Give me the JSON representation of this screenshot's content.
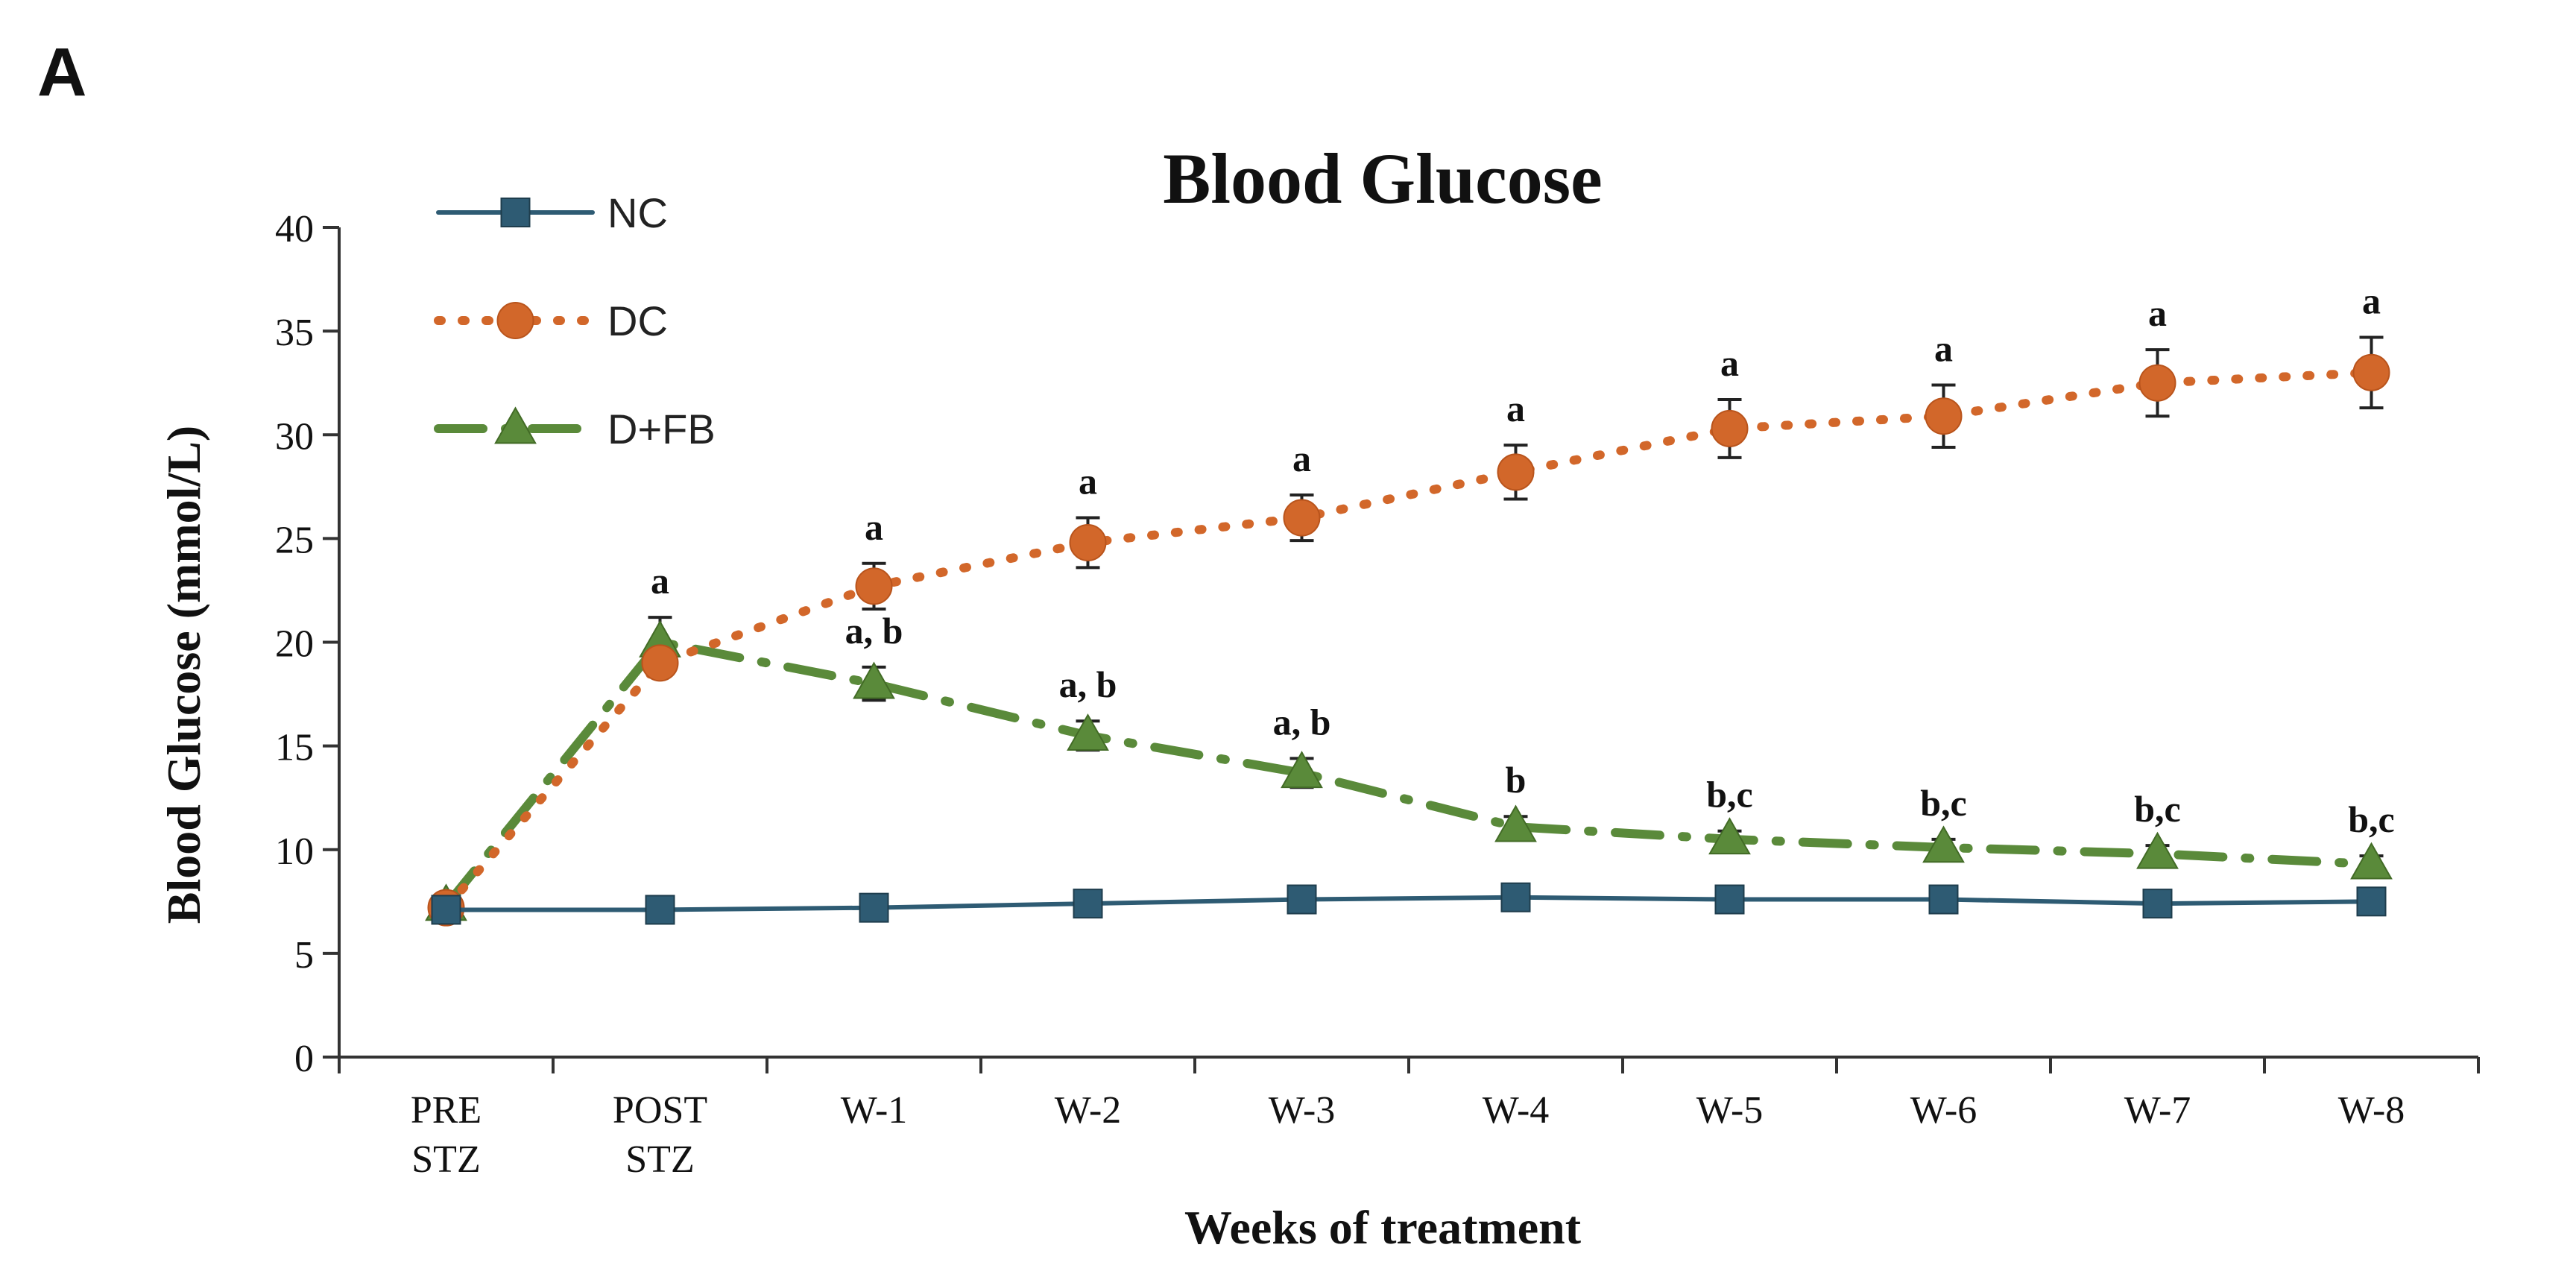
{
  "panel_label": "A",
  "chart_data": {
    "type": "line",
    "title": "Blood Glucose",
    "xlabel": "Weeks of treatment",
    "ylabel": "Blood Glucose (mmol/L)",
    "ylim": [
      0,
      40
    ],
    "yticks": [
      0,
      5,
      10,
      15,
      20,
      25,
      30,
      35,
      40
    ],
    "grid": false,
    "legend_position": "top-left",
    "categories": [
      [
        "PRE",
        "STZ"
      ],
      [
        "POST",
        "STZ"
      ],
      [
        "W-1"
      ],
      [
        "W-2"
      ],
      [
        "W-3"
      ],
      [
        "W-4"
      ],
      [
        "W-5"
      ],
      [
        "W-6"
      ],
      [
        "W-7"
      ],
      [
        "W-8"
      ]
    ],
    "series": [
      {
        "name": "NC",
        "color": "#2e5b73",
        "marker": "square",
        "line_style": "solid",
        "values": [
          7.1,
          7.1,
          7.2,
          7.4,
          7.6,
          7.7,
          7.6,
          7.6,
          7.4,
          7.5
        ],
        "errors": [
          0,
          0,
          0,
          0,
          0,
          0,
          0,
          0,
          0,
          0
        ],
        "annotations": [
          "",
          "",
          "",
          "",
          "",
          "",
          "",
          "",
          "",
          ""
        ]
      },
      {
        "name": "DC",
        "color": "#d2672a",
        "marker": "circle",
        "line_style": "dotted",
        "values": [
          7.2,
          19.0,
          22.7,
          24.8,
          26.0,
          28.2,
          30.3,
          30.9,
          32.5,
          33.0
        ],
        "errors": [
          0,
          0,
          1.1,
          1.2,
          1.1,
          1.3,
          1.4,
          1.5,
          1.6,
          1.7
        ],
        "annotations": [
          "",
          "",
          "a",
          "a",
          "a",
          "a",
          "a",
          "a",
          "a",
          "a"
        ]
      },
      {
        "name": "D+FB",
        "color": "#5a8a3a",
        "marker": "triangle",
        "line_style": "dashdot",
        "values": [
          7.3,
          20.0,
          18.0,
          15.5,
          13.7,
          11.1,
          10.5,
          10.1,
          9.8,
          9.3
        ],
        "errors": [
          0,
          1.2,
          0.8,
          0.7,
          0.7,
          0.5,
          0.4,
          0.4,
          0.4,
          0.4
        ],
        "annotations": [
          "",
          "a",
          "a, b",
          "a, b",
          "a, b",
          "b",
          "b,c",
          "b,c",
          "b,c",
          "b,c"
        ]
      }
    ]
  }
}
